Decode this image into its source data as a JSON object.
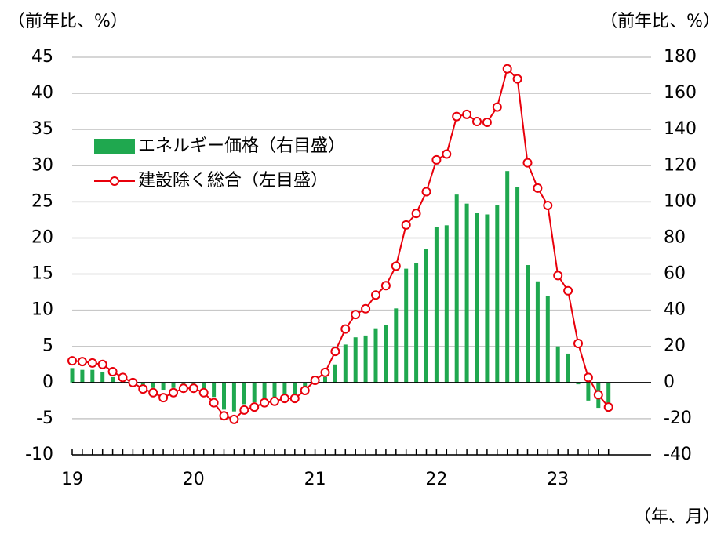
{
  "chart_data": {
    "type": "bar-line",
    "y_label": "（前年比、%）",
    "y2_label": "（前年比、%）",
    "x_label": "（年、月）",
    "categories": [
      "19",
      null,
      null,
      null,
      null,
      null,
      null,
      null,
      null,
      null,
      null,
      null,
      "20",
      null,
      null,
      null,
      null,
      null,
      null,
      null,
      null,
      null,
      null,
      null,
      "21",
      null,
      null,
      null,
      null,
      null,
      null,
      null,
      null,
      null,
      null,
      null,
      "22",
      null,
      null,
      null,
      null,
      null,
      null,
      null,
      null,
      null,
      null,
      null,
      "23",
      null,
      null,
      null,
      null,
      null
    ],
    "series": [
      {
        "name": "エネルギー価格（右目盛）",
        "type": "bar",
        "axis": "y2",
        "color": "#1fa84f",
        "values": [
          8,
          7,
          7,
          6,
          3,
          1,
          0,
          -2,
          -3,
          -4,
          -3,
          -2,
          -2,
          -4,
          -8,
          -15,
          -16,
          -12,
          -11,
          -9,
          -8,
          -7,
          -7,
          -4,
          1,
          3,
          10,
          21,
          25,
          26,
          30,
          32,
          41,
          63,
          66,
          74,
          86,
          87,
          104,
          99,
          94,
          93,
          98,
          117,
          108,
          65,
          56,
          48,
          20,
          16,
          -1,
          -10,
          -14,
          -16
        ]
      },
      {
        "name": "建設除く総合（左目盛）",
        "type": "line",
        "axis": "y",
        "color": "#e8000b",
        "values": [
          3.0,
          2.9,
          2.7,
          2.5,
          1.5,
          0.7,
          0,
          -0.9,
          -1.4,
          -2.1,
          -1.4,
          -0.8,
          -0.8,
          -1.4,
          -2.8,
          -4.6,
          -5.1,
          -3.8,
          -3.4,
          -2.8,
          -2.6,
          -2.2,
          -2.2,
          -1.1,
          0.3,
          1.4,
          4.3,
          7.4,
          9.4,
          10.2,
          12.1,
          13.4,
          16.1,
          21.8,
          23.4,
          26.4,
          30.8,
          31.6,
          36.8,
          37.1,
          36.1,
          36.0,
          38.1,
          43.4,
          42.0,
          30.4,
          26.9,
          24.5,
          14.8,
          12.7,
          5.4,
          0.7,
          -1.7,
          -3.4
        ]
      }
    ],
    "ylim": [
      -10,
      45
    ],
    "yticks": [
      -10,
      -5,
      0,
      5,
      10,
      15,
      20,
      25,
      30,
      35,
      40,
      45
    ],
    "y2lim": [
      -40,
      180
    ],
    "y2ticks": [
      -40,
      -20,
      0,
      20,
      40,
      60,
      80,
      100,
      120,
      140,
      160,
      180
    ],
    "grid": true
  }
}
